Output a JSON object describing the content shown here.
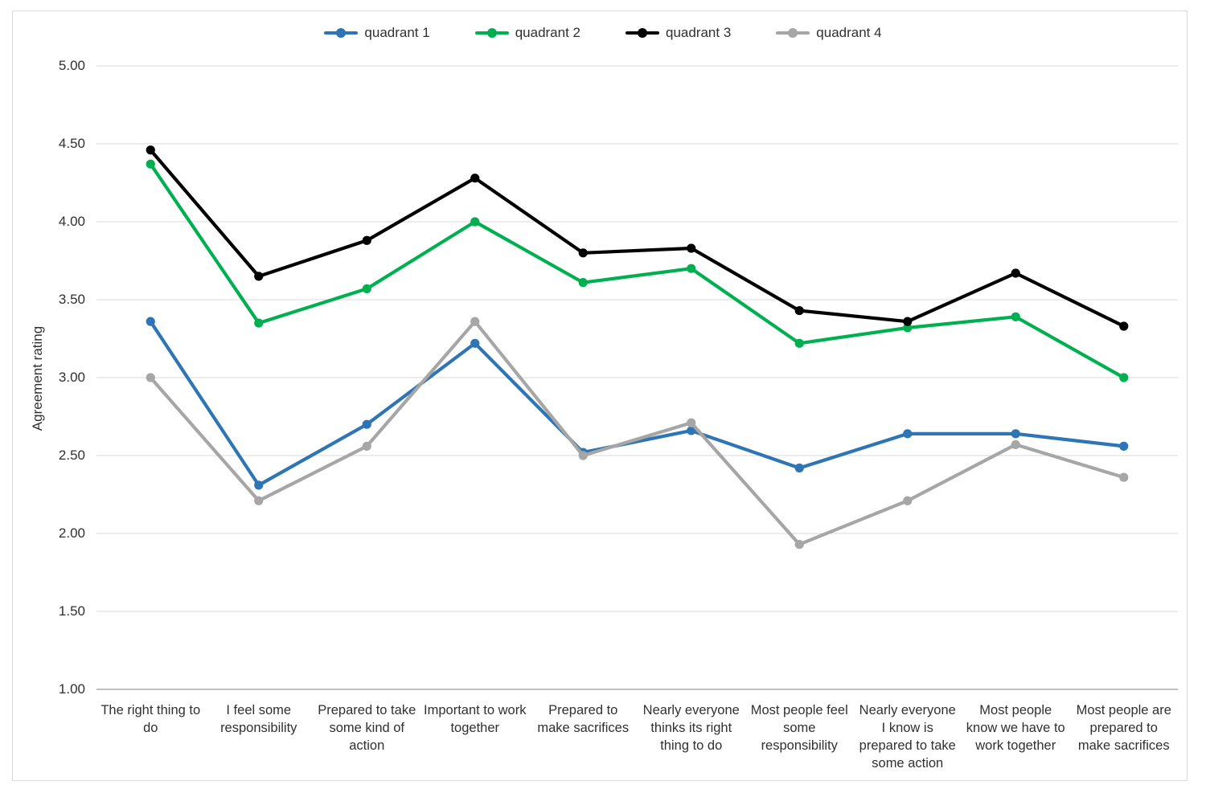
{
  "chart_data": {
    "type": "line",
    "title": "",
    "xlabel": "",
    "ylabel": "Agreement rating",
    "ylim": [
      1.0,
      5.0
    ],
    "yticks": [
      5.0,
      4.5,
      4.0,
      3.5,
      3.0,
      2.5,
      2.0,
      1.5,
      1.0
    ],
    "ytick_labels": [
      "5.00",
      "4.50",
      "4.00",
      "3.50",
      "3.00",
      "2.50",
      "2.00",
      "1.50",
      "1.00"
    ],
    "grid": "horizontal",
    "gridline_color": "#D9D9D9",
    "axis_line_color": "#808080",
    "legend_position": "top-center",
    "categories": [
      "The right thing to do",
      "I feel some responsibility",
      "Prepared to take some kind of action",
      "Important to work together",
      "Prepared to make sacrifices",
      "Nearly everyone thinks its right thing to do",
      "Most people feel some responsibility",
      "Nearly everyone I know is prepared to take some action",
      "Most people know we have to work together",
      "Most people are prepared to make sacrifices"
    ],
    "series": [
      {
        "name": "quadrant 1",
        "color": "#2E75B6",
        "values": [
          3.36,
          2.31,
          2.7,
          3.22,
          2.52,
          2.66,
          2.42,
          2.64,
          2.64,
          2.56
        ]
      },
      {
        "name": "quadrant 2",
        "color": "#00B050",
        "values": [
          4.37,
          3.35,
          3.57,
          4.0,
          3.61,
          3.7,
          3.22,
          3.32,
          3.39,
          3.0
        ]
      },
      {
        "name": "quadrant 3",
        "color": "#000000",
        "values": [
          4.46,
          3.65,
          3.88,
          4.28,
          3.8,
          3.83,
          3.43,
          3.36,
          3.67,
          3.33
        ]
      },
      {
        "name": "quadrant 4",
        "color": "#A6A6A6",
        "values": [
          3.0,
          2.21,
          2.56,
          3.36,
          2.5,
          2.71,
          1.93,
          2.21,
          2.57,
          2.36
        ]
      }
    ]
  }
}
